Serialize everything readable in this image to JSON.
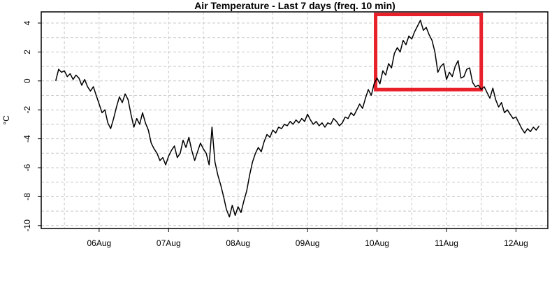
{
  "chart_data": {
    "type": "line",
    "title": "Air Temperature - Last 7 days (freq. 10 min)",
    "xlabel": "",
    "ylabel": "°C",
    "x_ticks": [
      "06Aug",
      "07Aug",
      "08Aug",
      "09Aug",
      "10Aug",
      "11Aug",
      "12Aug"
    ],
    "y_ticks": [
      -10,
      -8,
      -6,
      -4,
      -2,
      0,
      2,
      4
    ],
    "xlim": [
      "2023-08-05T04:00",
      "2023-08-12T11:00"
    ],
    "ylim": [
      -10,
      4.5
    ],
    "grid": true,
    "colors": {
      "line": "#000000",
      "highlight": "#e8202a",
      "grid": "#c8c8c8"
    },
    "highlight_region": {
      "x": [
        "2023-08-10T00:00",
        "2023-08-11T12:00"
      ],
      "y": [
        -0.6,
        4.6
      ]
    },
    "series": [
      {
        "name": "",
        "points": [
          [
            "2023-08-05T09:00",
            0.0
          ],
          [
            "2023-08-05T10:00",
            0.8
          ],
          [
            "2023-08-05T11:00",
            0.6
          ],
          [
            "2023-08-05T12:00",
            0.7
          ],
          [
            "2023-08-05T13:00",
            0.3
          ],
          [
            "2023-08-05T14:00",
            0.5
          ],
          [
            "2023-08-05T15:00",
            0.1
          ],
          [
            "2023-08-05T16:00",
            0.4
          ],
          [
            "2023-08-05T17:00",
            0.2
          ],
          [
            "2023-08-05T18:00",
            -0.3
          ],
          [
            "2023-08-05T19:00",
            0.1
          ],
          [
            "2023-08-05T20:00",
            -0.4
          ],
          [
            "2023-08-05T21:00",
            -0.7
          ],
          [
            "2023-08-05T22:00",
            -0.4
          ],
          [
            "2023-08-05T23:00",
            -1.0
          ],
          [
            "2023-08-06T00:00",
            -1.6
          ],
          [
            "2023-08-06T01:00",
            -2.2
          ],
          [
            "2023-08-06T02:00",
            -2.0
          ],
          [
            "2023-08-06T03:00",
            -2.9
          ],
          [
            "2023-08-06T04:00",
            -3.3
          ],
          [
            "2023-08-06T05:00",
            -2.6
          ],
          [
            "2023-08-06T06:00",
            -1.8
          ],
          [
            "2023-08-06T07:00",
            -1.1
          ],
          [
            "2023-08-06T08:00",
            -1.5
          ],
          [
            "2023-08-06T09:00",
            -0.9
          ],
          [
            "2023-08-06T10:00",
            -1.3
          ],
          [
            "2023-08-06T11:00",
            -2.3
          ],
          [
            "2023-08-06T12:00",
            -3.2
          ],
          [
            "2023-08-06T13:00",
            -2.6
          ],
          [
            "2023-08-06T14:00",
            -3.0
          ],
          [
            "2023-08-06T15:00",
            -2.2
          ],
          [
            "2023-08-06T16:00",
            -2.9
          ],
          [
            "2023-08-06T17:00",
            -3.4
          ],
          [
            "2023-08-06T18:00",
            -4.3
          ],
          [
            "2023-08-06T19:00",
            -4.7
          ],
          [
            "2023-08-06T20:00",
            -5.0
          ],
          [
            "2023-08-06T21:00",
            -5.5
          ],
          [
            "2023-08-06T22:00",
            -5.3
          ],
          [
            "2023-08-06T23:00",
            -5.8
          ],
          [
            "2023-08-07T00:00",
            -5.2
          ],
          [
            "2023-08-07T01:00",
            -4.8
          ],
          [
            "2023-08-07T02:00",
            -4.5
          ],
          [
            "2023-08-07T03:00",
            -5.3
          ],
          [
            "2023-08-07T04:00",
            -5.0
          ],
          [
            "2023-08-07T05:00",
            -4.1
          ],
          [
            "2023-08-07T06:00",
            -4.6
          ],
          [
            "2023-08-07T07:00",
            -3.9
          ],
          [
            "2023-08-07T08:00",
            -4.8
          ],
          [
            "2023-08-07T09:00",
            -5.5
          ],
          [
            "2023-08-07T10:00",
            -4.9
          ],
          [
            "2023-08-07T11:00",
            -4.3
          ],
          [
            "2023-08-07T12:00",
            -4.7
          ],
          [
            "2023-08-07T13:00",
            -5.0
          ],
          [
            "2023-08-07T14:00",
            -5.8
          ],
          [
            "2023-08-07T15:00",
            -3.2
          ],
          [
            "2023-08-07T16:00",
            -5.6
          ],
          [
            "2023-08-07T17:00",
            -6.5
          ],
          [
            "2023-08-07T18:00",
            -7.2
          ],
          [
            "2023-08-07T19:00",
            -8.0
          ],
          [
            "2023-08-07T20:00",
            -8.9
          ],
          [
            "2023-08-07T21:00",
            -9.4
          ],
          [
            "2023-08-07T22:00",
            -8.6
          ],
          [
            "2023-08-07T23:00",
            -9.3
          ],
          [
            "2023-08-08T00:00",
            -8.7
          ],
          [
            "2023-08-08T01:00",
            -9.1
          ],
          [
            "2023-08-08T02:00",
            -8.3
          ],
          [
            "2023-08-08T03:00",
            -7.6
          ],
          [
            "2023-08-08T04:00",
            -6.5
          ],
          [
            "2023-08-08T05:00",
            -5.6
          ],
          [
            "2023-08-08T06:00",
            -5.0
          ],
          [
            "2023-08-08T07:00",
            -4.6
          ],
          [
            "2023-08-08T08:00",
            -4.9
          ],
          [
            "2023-08-08T09:00",
            -4.2
          ],
          [
            "2023-08-08T10:00",
            -3.7
          ],
          [
            "2023-08-08T11:00",
            -3.9
          ],
          [
            "2023-08-08T12:00",
            -3.4
          ],
          [
            "2023-08-08T13:00",
            -3.6
          ],
          [
            "2023-08-08T14:00",
            -3.2
          ],
          [
            "2023-08-08T15:00",
            -3.3
          ],
          [
            "2023-08-08T16:00",
            -3.0
          ],
          [
            "2023-08-08T17:00",
            -3.1
          ],
          [
            "2023-08-08T18:00",
            -2.8
          ],
          [
            "2023-08-08T19:00",
            -3.0
          ],
          [
            "2023-08-08T20:00",
            -2.7
          ],
          [
            "2023-08-08T21:00",
            -2.9
          ],
          [
            "2023-08-08T22:00",
            -2.6
          ],
          [
            "2023-08-08T23:00",
            -2.8
          ],
          [
            "2023-08-09T00:00",
            -2.3
          ],
          [
            "2023-08-09T01:00",
            -2.7
          ],
          [
            "2023-08-09T02:00",
            -3.0
          ],
          [
            "2023-08-09T03:00",
            -2.8
          ],
          [
            "2023-08-09T04:00",
            -3.1
          ],
          [
            "2023-08-09T05:00",
            -2.9
          ],
          [
            "2023-08-09T06:00",
            -3.2
          ],
          [
            "2023-08-09T07:00",
            -2.9
          ],
          [
            "2023-08-09T08:00",
            -3.0
          ],
          [
            "2023-08-09T09:00",
            -2.6
          ],
          [
            "2023-08-09T10:00",
            -2.8
          ],
          [
            "2023-08-09T11:00",
            -3.1
          ],
          [
            "2023-08-09T12:00",
            -2.9
          ],
          [
            "2023-08-09T13:00",
            -2.5
          ],
          [
            "2023-08-09T14:00",
            -2.6
          ],
          [
            "2023-08-09T15:00",
            -2.2
          ],
          [
            "2023-08-09T16:00",
            -2.4
          ],
          [
            "2023-08-09T17:00",
            -2.0
          ],
          [
            "2023-08-09T18:00",
            -1.6
          ],
          [
            "2023-08-09T19:00",
            -1.9
          ],
          [
            "2023-08-09T20:00",
            -1.2
          ],
          [
            "2023-08-09T21:00",
            -0.6
          ],
          [
            "2023-08-09T22:00",
            -1.0
          ],
          [
            "2023-08-09T23:00",
            -0.2
          ],
          [
            "2023-08-10T00:00",
            0.2
          ],
          [
            "2023-08-10T01:00",
            -0.2
          ],
          [
            "2023-08-10T02:00",
            0.7
          ],
          [
            "2023-08-10T03:00",
            0.4
          ],
          [
            "2023-08-10T04:00",
            1.2
          ],
          [
            "2023-08-10T05:00",
            0.9
          ],
          [
            "2023-08-10T06:00",
            1.9
          ],
          [
            "2023-08-10T07:00",
            2.3
          ],
          [
            "2023-08-10T08:00",
            2.0
          ],
          [
            "2023-08-10T09:00",
            2.8
          ],
          [
            "2023-08-10T10:00",
            2.5
          ],
          [
            "2023-08-10T11:00",
            3.1
          ],
          [
            "2023-08-10T12:00",
            2.9
          ],
          [
            "2023-08-10T13:00",
            3.4
          ],
          [
            "2023-08-10T14:00",
            3.8
          ],
          [
            "2023-08-10T15:00",
            4.2
          ],
          [
            "2023-08-10T16:00",
            3.5
          ],
          [
            "2023-08-10T17:00",
            3.7
          ],
          [
            "2023-08-10T18:00",
            3.2
          ],
          [
            "2023-08-10T19:00",
            2.8
          ],
          [
            "2023-08-10T20:00",
            2.0
          ],
          [
            "2023-08-10T21:00",
            0.6
          ],
          [
            "2023-08-10T22:00",
            1.0
          ],
          [
            "2023-08-10T23:00",
            1.2
          ],
          [
            "2023-08-11T00:00",
            0.1
          ],
          [
            "2023-08-11T01:00",
            0.6
          ],
          [
            "2023-08-11T02:00",
            0.3
          ],
          [
            "2023-08-11T03:00",
            1.0
          ],
          [
            "2023-08-11T04:00",
            1.4
          ],
          [
            "2023-08-11T05:00",
            0.2
          ],
          [
            "2023-08-11T06:00",
            0.3
          ],
          [
            "2023-08-11T07:00",
            0.8
          ],
          [
            "2023-08-11T08:00",
            0.9
          ],
          [
            "2023-08-11T09:00",
            -0.1
          ],
          [
            "2023-08-11T10:00",
            -0.4
          ],
          [
            "2023-08-11T11:00",
            -0.3
          ],
          [
            "2023-08-11T12:00",
            -0.6
          ],
          [
            "2023-08-11T13:00",
            -0.4
          ],
          [
            "2023-08-11T14:00",
            -0.8
          ],
          [
            "2023-08-11T15:00",
            -1.2
          ],
          [
            "2023-08-11T16:00",
            -0.5
          ],
          [
            "2023-08-11T17:00",
            -1.3
          ],
          [
            "2023-08-11T18:00",
            -1.8
          ],
          [
            "2023-08-11T19:00",
            -1.5
          ],
          [
            "2023-08-11T20:00",
            -2.2
          ],
          [
            "2023-08-11T21:00",
            -2.0
          ],
          [
            "2023-08-11T22:00",
            -2.3
          ],
          [
            "2023-08-11T23:00",
            -2.6
          ],
          [
            "2023-08-12T00:00",
            -2.5
          ],
          [
            "2023-08-12T01:00",
            -2.9
          ],
          [
            "2023-08-12T02:00",
            -3.3
          ],
          [
            "2023-08-12T03:00",
            -3.6
          ],
          [
            "2023-08-12T04:00",
            -3.3
          ],
          [
            "2023-08-12T05:00",
            -3.5
          ],
          [
            "2023-08-12T06:00",
            -3.2
          ],
          [
            "2023-08-12T07:00",
            -3.4
          ],
          [
            "2023-08-12T08:00",
            -3.1
          ]
        ]
      }
    ]
  }
}
